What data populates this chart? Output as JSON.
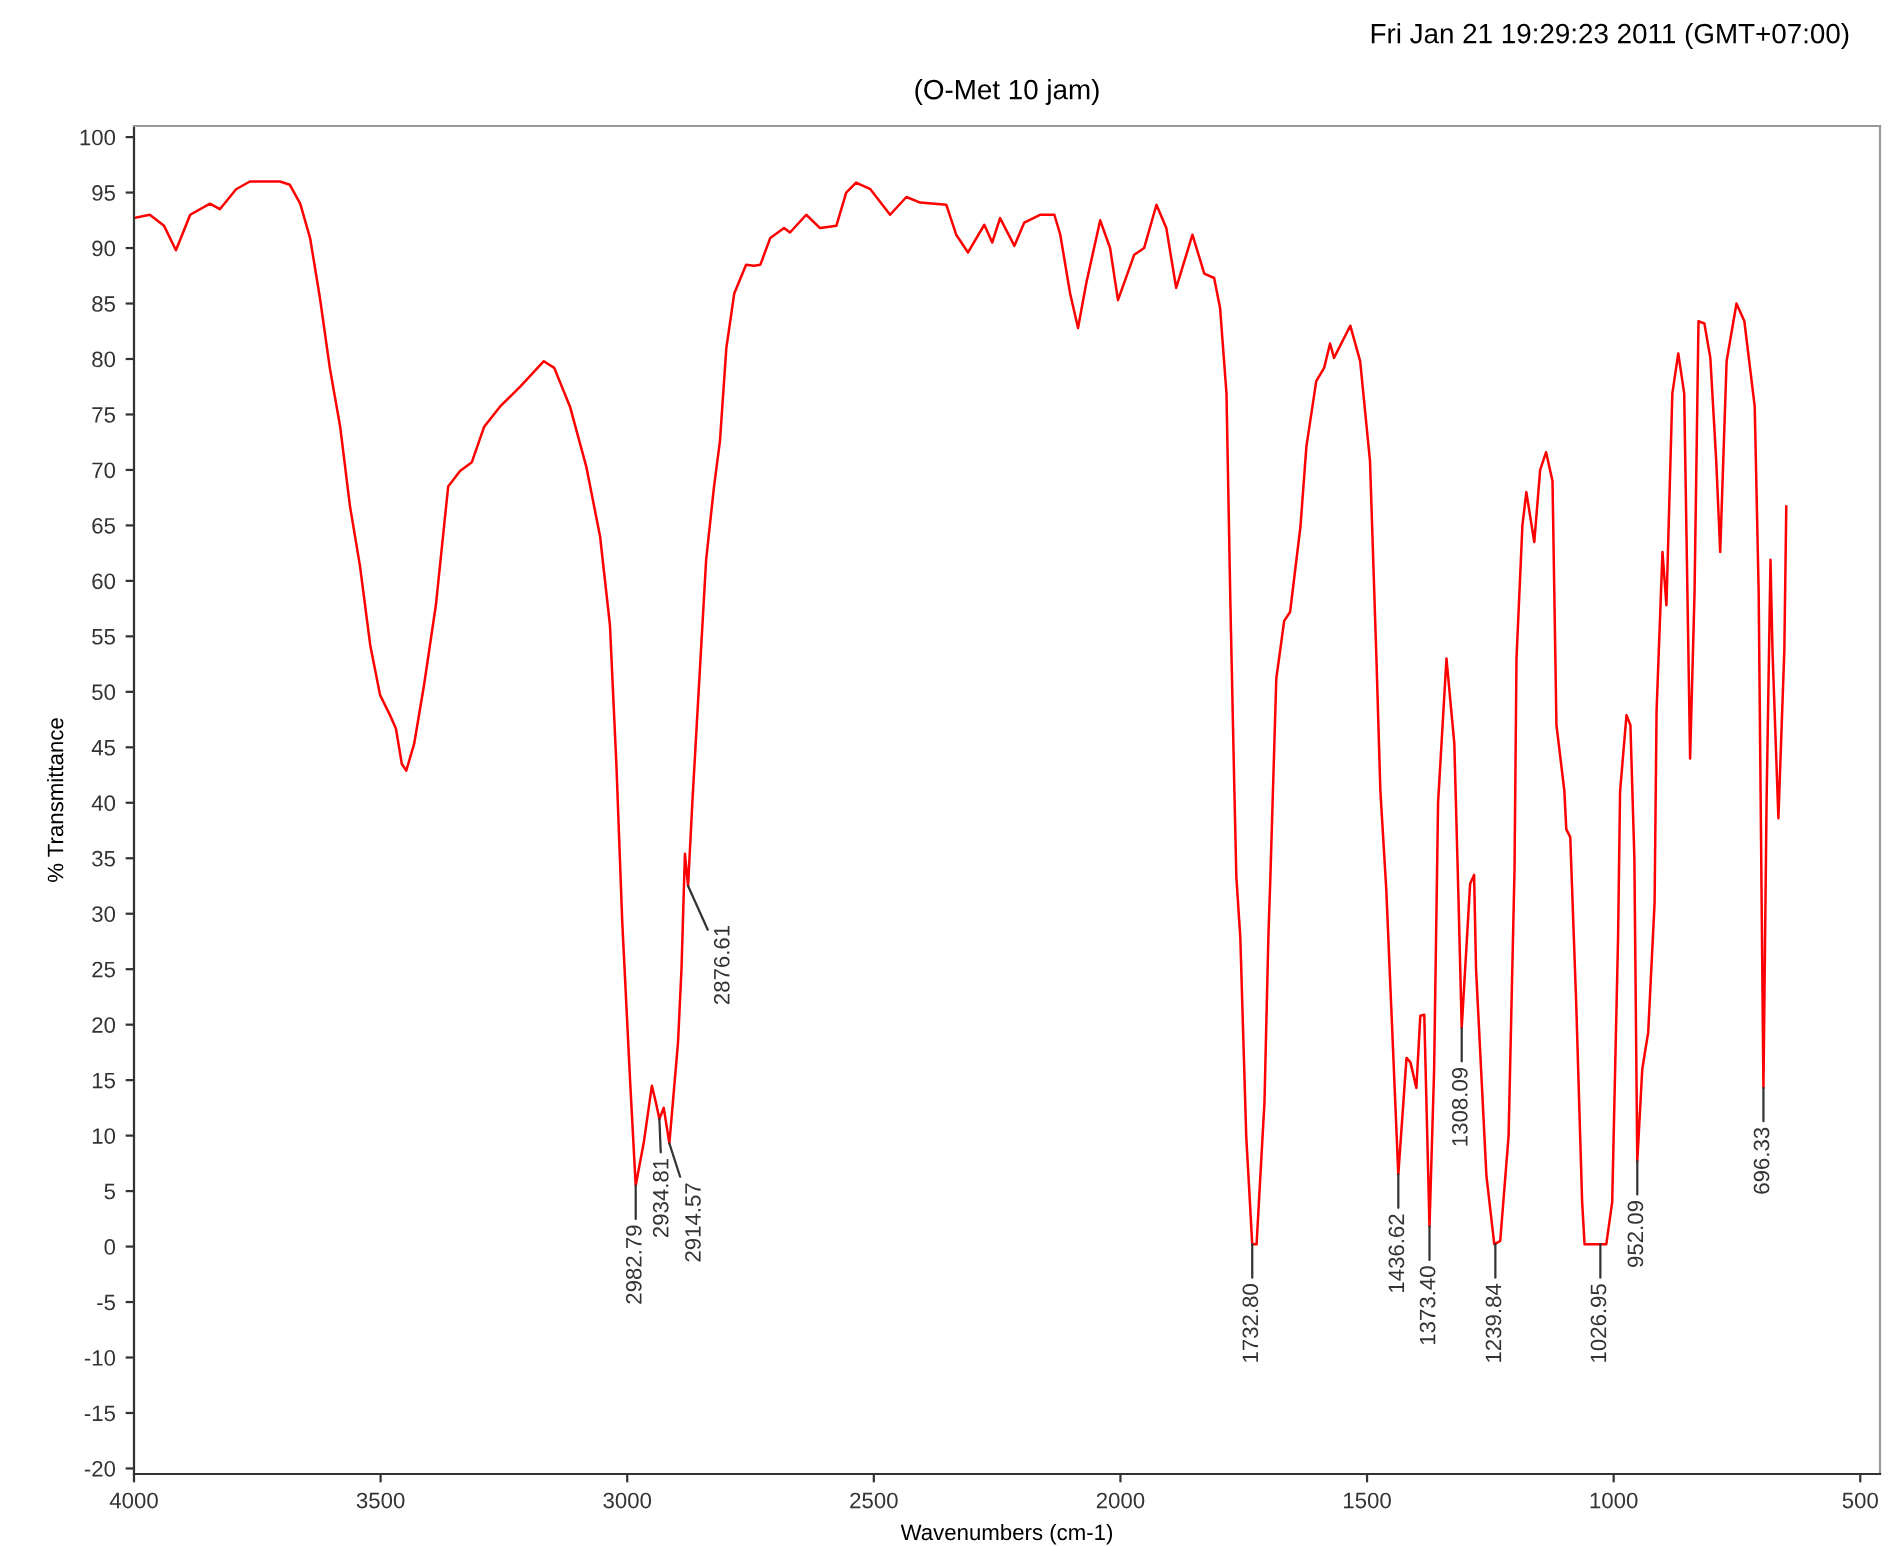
{
  "chart_data": {
    "type": "line",
    "title": "(O-Met 10 jam)",
    "xlabel": "Wavenumbers (cm-1)",
    "ylabel": "% Transmittance",
    "annotations": [
      "Fri Jan 21 19:29:23 2011 (GMT+07:00)",
      {
        "text": "2982.79",
        "x": 2982.79,
        "y": 5.5
      },
      {
        "text": "2934.81",
        "x": 2934.81,
        "y": 11.5
      },
      {
        "text": "2914.57",
        "x": 2914.57,
        "y": 9.3
      },
      {
        "text": "2876.61",
        "x": 2876.61,
        "y": 32.5
      },
      {
        "text": "1732.80",
        "x": 1732.8,
        "y": 0.2
      },
      {
        "text": "1436.62",
        "x": 1436.62,
        "y": 6.5
      },
      {
        "text": "1373.40",
        "x": 1373.4,
        "y": 1.8
      },
      {
        "text": "1308.09",
        "x": 1308.09,
        "y": 19.7
      },
      {
        "text": "1239.84",
        "x": 1239.84,
        "y": 0.2
      },
      {
        "text": "1026.95",
        "x": 1026.95,
        "y": 0.2
      },
      {
        "text": "952.09",
        "x": 952.09,
        "y": 7.7
      },
      {
        "text": "696.33",
        "x": 696.33,
        "y": 14.3
      }
    ],
    "x": [
      4000,
      3968,
      3939,
      3915,
      3886,
      3846,
      3826,
      3793,
      3765,
      3704,
      3684,
      3663,
      3643,
      3623,
      3603,
      3582,
      3562,
      3542,
      3521,
      3501,
      3481,
      3469,
      3457,
      3448,
      3432,
      3412,
      3388,
      3363,
      3339,
      3315,
      3290,
      3258,
      3217,
      3169,
      3148,
      3116,
      3083,
      3055,
      3035,
      3022,
      3010,
      2994,
      2982.79,
      2966,
      2950,
      2942,
      2934.81,
      2926,
      2914.57,
      2897,
      2890,
      2883,
      2876.61,
      2868,
      2840,
      2824,
      2812,
      2799,
      2783,
      2759,
      2743,
      2730,
      2710,
      2682,
      2670,
      2637,
      2609,
      2576,
      2556,
      2536,
      2507,
      2467,
      2434,
      2406,
      2353,
      2333,
      2309,
      2276,
      2260,
      2244,
      2215,
      2195,
      2163,
      2134,
      2122,
      2102,
      2086,
      2069,
      2041,
      2021,
      2005,
      1972,
      1952,
      1927,
      1907,
      1887,
      1854,
      1830,
      1810,
      1798,
      1785,
      1777,
      1769,
      1765,
      1757,
      1745,
      1732.8,
      1724,
      1708,
      1700,
      1696,
      1684,
      1668,
      1656,
      1635,
      1623,
      1603,
      1587,
      1575,
      1567,
      1534,
      1514,
      1494,
      1481,
      1473,
      1461,
      1436.62,
      1420,
      1412,
      1400,
      1392,
      1384,
      1373.4,
      1364,
      1356,
      1339,
      1323,
      1315,
      1308.09,
      1291,
      1283,
      1279,
      1258,
      1242,
      1230,
      1213,
      1201,
      1197,
      1185,
      1177,
      1161,
      1149,
      1137,
      1124,
      1116,
      1100,
      1096,
      1088,
      1076,
      1064,
      1059,
      1015,
      1003,
      991,
      987,
      974,
      966,
      958,
      952.09,
      942,
      930,
      917,
      913,
      901,
      893,
      881,
      869,
      857,
      845,
      836,
      828,
      816,
      804,
      792,
      784,
      771,
      751,
      735,
      714,
      706,
      696.33,
      690,
      682,
      678,
      666,
      654,
      650
    ],
    "series": [
      {
        "color": "#ff0000",
        "values": [
          92.7,
          93,
          92,
          89.8,
          93,
          94,
          93.5,
          95.3,
          96,
          96,
          95.7,
          94,
          90.9,
          85.5,
          79.2,
          73.9,
          66.7,
          61.4,
          54.2,
          49.7,
          47.9,
          46.7,
          43.5,
          42.9,
          45.3,
          50.6,
          57.8,
          68.5,
          69.9,
          70.7,
          73.9,
          75.7,
          77.5,
          79.8,
          79.2,
          75.7,
          70.3,
          64,
          56,
          43.5,
          29.2,
          14.8,
          5.5,
          9.5,
          14.5,
          13,
          11.5,
          12.5,
          9.3,
          18.4,
          25,
          35.4,
          32.5,
          40,
          61.9,
          68.5,
          72.6,
          81,
          85.9,
          88.5,
          88.4,
          88.5,
          90.9,
          91.8,
          91.4,
          93,
          91.8,
          92,
          95,
          95.9,
          95.3,
          93,
          94.6,
          94.1,
          93.9,
          91.2,
          89.6,
          92.1,
          90.5,
          92.7,
          90.2,
          92.3,
          93,
          93,
          91.2,
          85.9,
          82.8,
          86.9,
          92.5,
          90,
          85.3,
          89.4,
          90,
          93.9,
          91.8,
          86.4,
          91.2,
          87.7,
          87.3,
          84.6,
          76.9,
          57.8,
          41.1,
          33.3,
          27.9,
          10,
          0.2,
          0.2,
          13,
          28,
          33.3,
          51.2,
          56.4,
          57.2,
          64.9,
          72.1,
          78,
          79.2,
          81.4,
          80.1,
          83,
          79.8,
          70.8,
          53,
          41.1,
          32.2,
          6.5,
          17,
          16.6,
          14.3,
          20.8,
          20.9,
          1.8,
          16,
          40,
          53,
          45.3,
          32,
          19.7,
          32.7,
          33.5,
          25,
          6.4,
          0.2,
          0.5,
          10,
          34,
          53,
          65,
          68,
          63.5,
          70,
          71.6,
          69,
          47,
          41.1,
          37.6,
          36.9,
          22,
          4.1,
          0.2,
          0.2,
          4,
          28,
          41,
          47.9,
          47,
          35,
          7.7,
          16,
          19.3,
          31,
          48.3,
          62.6,
          57.8,
          76.9,
          80.5,
          76.9,
          44,
          59,
          83.4,
          83.2,
          80.1,
          70.8,
          62.6,
          79.8,
          85,
          83.4,
          75.7,
          59,
          14.3,
          40,
          61.9,
          53.7,
          38.6,
          53.7,
          66.7
        ]
      }
    ],
    "xlim": [
      4000,
      460
    ],
    "xticks": [
      4000,
      3500,
      3000,
      2500,
      2000,
      1500,
      1000,
      500
    ],
    "ylim": [
      -20.5,
      101
    ],
    "yticks": [
      100,
      95,
      90,
      85,
      80,
      75,
      70,
      65,
      60,
      55,
      50,
      45,
      40,
      35,
      30,
      25,
      20,
      15,
      10,
      5,
      0,
      -5,
      -10,
      -15,
      -20
    ],
    "grid": false,
    "legend": false,
    "marker": "none",
    "line_style": "solid"
  }
}
